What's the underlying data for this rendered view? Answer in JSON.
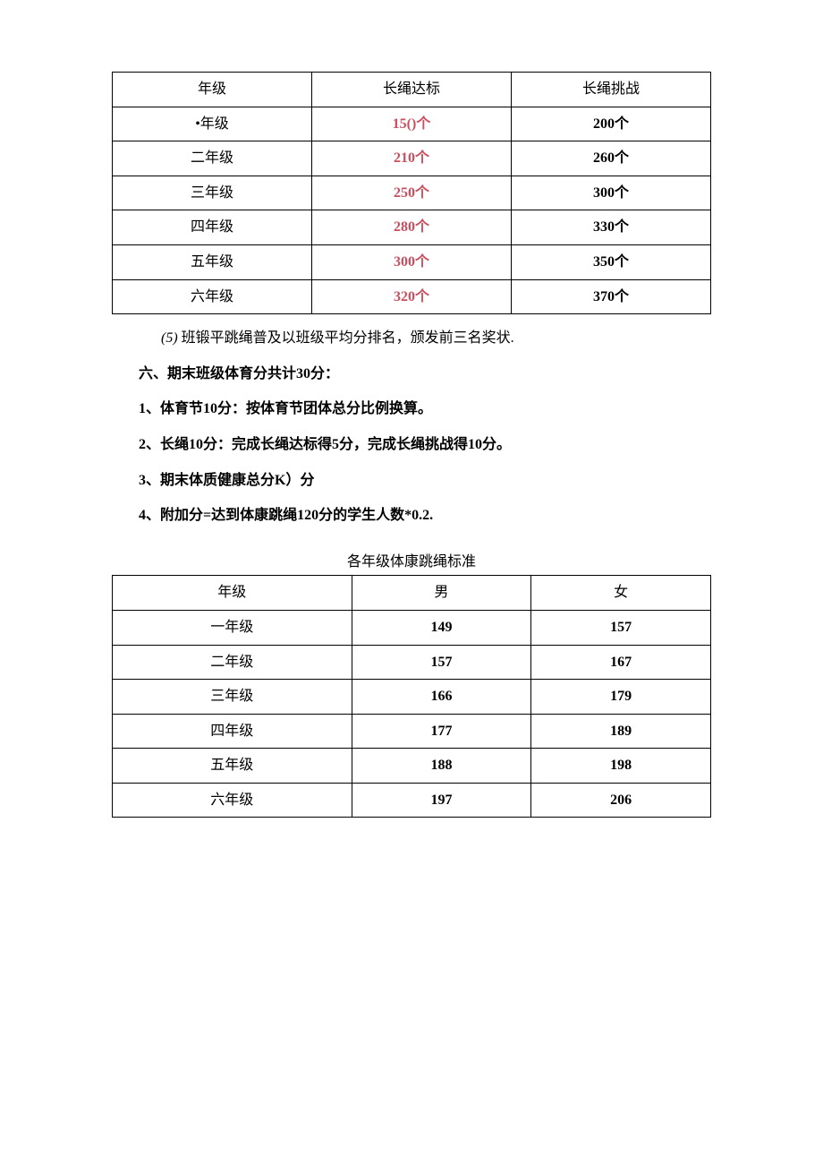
{
  "table1": {
    "headers": [
      "年级",
      "长绳达标",
      "长绳挑战"
    ],
    "rows": [
      {
        "grade": "•年级",
        "std": "15()个",
        "challenge": "200个"
      },
      {
        "grade": "二年级",
        "std": "210个",
        "challenge": "260个"
      },
      {
        "grade": "三年级",
        "std": "250个",
        "challenge": "300个"
      },
      {
        "grade": "四年级",
        "std": "280个",
        "challenge": "330个"
      },
      {
        "grade": "五年级",
        "std": "300个",
        "challenge": "350个"
      },
      {
        "grade": "六年级",
        "std": "320个",
        "challenge": "370个"
      }
    ],
    "std_color": "#c94f5f"
  },
  "paragraphs": {
    "p5_prefix": "(5) ",
    "p5": "班锻平跳绳普及以班级平均分排名，颁发前三名奖状.",
    "p6": "六、期末班级体育分共计30分：",
    "p7": "1、体育节10分：按体育节团体总分比例换算。",
    "p8": "2、长绳10分：完成长绳达标得5分，完成长绳挑战得10分。",
    "p9": "3、期末体质健康总分K）分",
    "p10": "4、附加分=达到体康跳绳120分的学生人数*0.2."
  },
  "table2": {
    "title": "各年级体康跳绳标准",
    "headers": [
      "年级",
      "男",
      "女"
    ],
    "rows": [
      {
        "grade": "一年级",
        "male": "149",
        "female": "157"
      },
      {
        "grade": "二年级",
        "male": "157",
        "female": "167"
      },
      {
        "grade": "三年级",
        "male": "166",
        "female": "179"
      },
      {
        "grade": "四年级",
        "male": "177",
        "female": "189"
      },
      {
        "grade": "五年级",
        "male": "188",
        "female": "198"
      },
      {
        "grade": "六年级",
        "male": "197",
        "female": "206"
      }
    ]
  },
  "colors": {
    "text": "#000000",
    "accent": "#c94f5f",
    "background": "#ffffff",
    "border": "#000000"
  },
  "font": {
    "family": "SimSun",
    "base_size": 16
  }
}
